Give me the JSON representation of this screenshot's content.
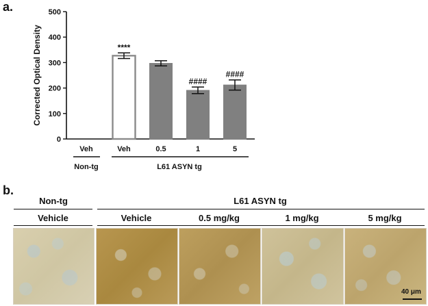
{
  "panel_a_label": "a.",
  "panel_b_label": "b.",
  "chart_data": {
    "type": "bar",
    "ylabel": "Corrected Optical Density",
    "ylim": [
      0,
      500
    ],
    "yticks": [
      "0",
      "100",
      "200",
      "300",
      "400",
      "500"
    ],
    "categories": [
      "Veh",
      "Veh",
      "0.5",
      "1",
      "5"
    ],
    "values": [
      0,
      327,
      297,
      191,
      212
    ],
    "errors": [
      0,
      11,
      10,
      13,
      20
    ],
    "annotations": [
      "",
      "****",
      "",
      "####",
      "####"
    ],
    "group_labels": [
      "Non-tg",
      "L61 ASYN tg"
    ],
    "bar_styles": [
      "none",
      "hollow",
      "filled",
      "filled",
      "filled"
    ],
    "colors": {
      "fill": "#808080",
      "hollow_edge": "#8a8a8a"
    }
  },
  "micrographs": {
    "group_headers": [
      "Non-tg",
      "L61 ASYN tg"
    ],
    "panels": [
      {
        "label": "Vehicle",
        "stain": "light"
      },
      {
        "label": "Vehicle",
        "stain": "dark"
      },
      {
        "label": "0.5 mg/kg",
        "stain": "dark"
      },
      {
        "label": "1 mg/kg",
        "stain": "light-medium"
      },
      {
        "label": "5 mg/kg",
        "stain": "medium"
      }
    ],
    "scale_bar": "40 μm"
  }
}
